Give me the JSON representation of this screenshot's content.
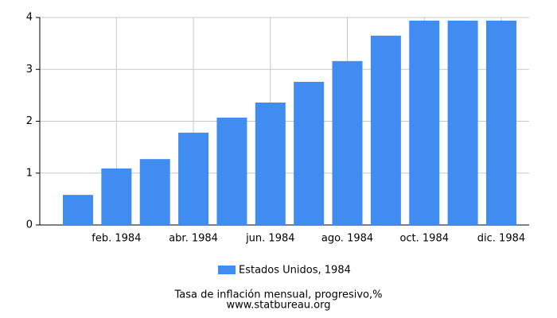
{
  "chart_data": {
    "type": "bar",
    "title": "Tasa de inflación mensual, progresivo,%",
    "source": "www.statbureau.org",
    "categories": [
      null,
      "feb. 1984",
      null,
      "abr. 1984",
      null,
      "jun. 1984",
      null,
      "ago. 1984",
      null,
      "oct. 1984",
      null,
      "dic. 1984"
    ],
    "series": [
      {
        "name": "Estados Unidos, 1984",
        "color": "#418cf0",
        "values": [
          0.58,
          1.09,
          1.27,
          1.78,
          2.07,
          2.36,
          2.76,
          3.16,
          3.65,
          3.94,
          3.94,
          3.94
        ]
      }
    ],
    "ylim": [
      0,
      4
    ],
    "yticks": [
      0,
      1,
      2,
      3,
      4
    ],
    "grid": true
  }
}
